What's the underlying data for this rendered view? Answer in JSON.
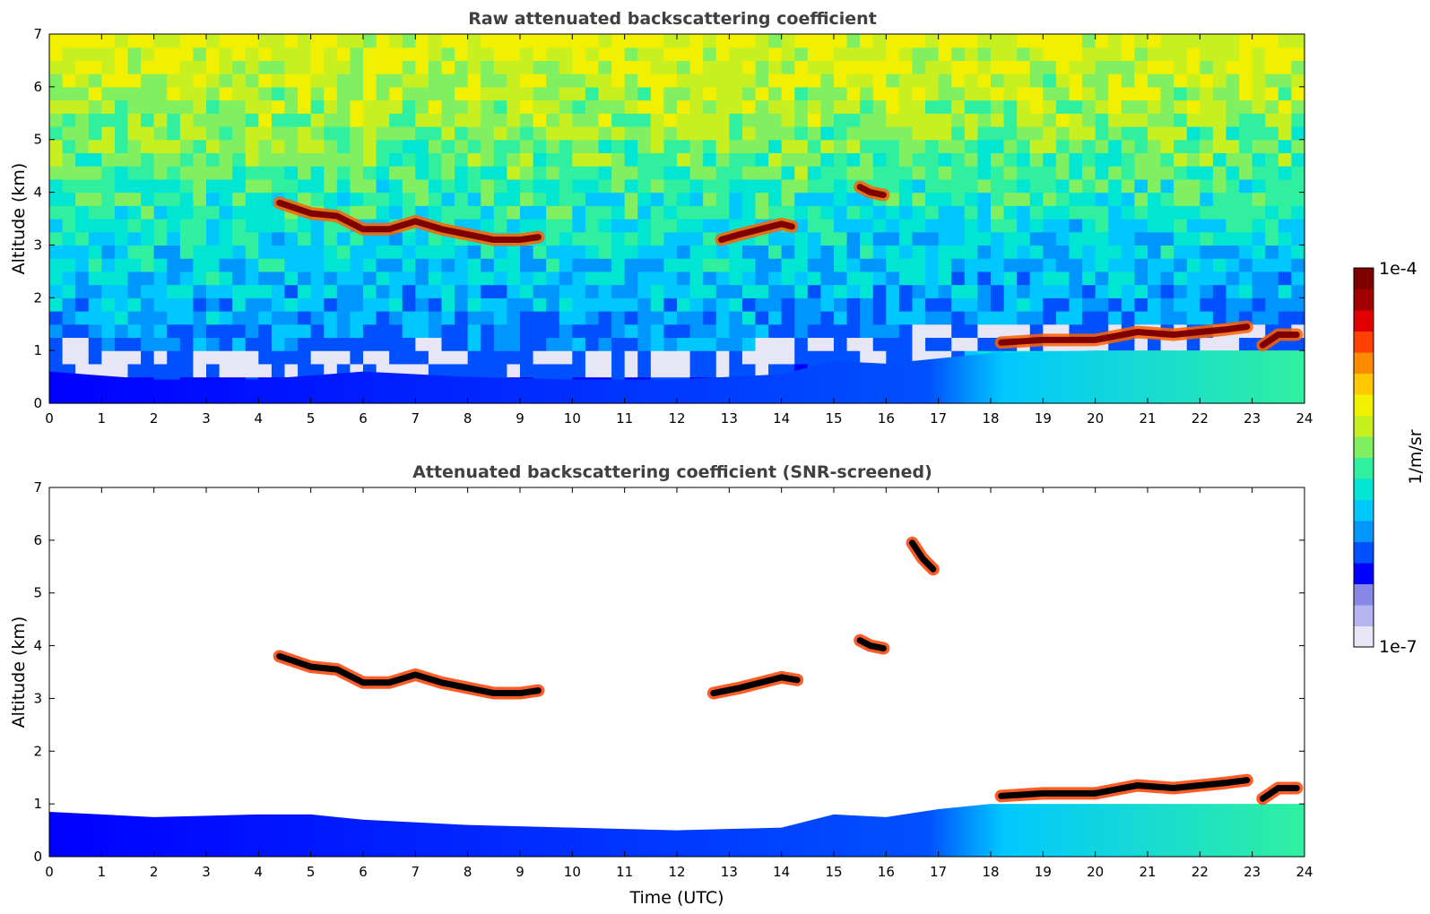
{
  "chart_data": [
    {
      "type": "heatmap",
      "title": "Raw attenuated backscattering coefficient",
      "xlabel": "",
      "ylabel": "Altitude (km)",
      "xlim": [
        0,
        24
      ],
      "ylim": [
        0,
        7
      ],
      "xticks": [
        0,
        1,
        2,
        3,
        4,
        5,
        6,
        7,
        8,
        9,
        10,
        11,
        12,
        13,
        14,
        15,
        16,
        17,
        18,
        19,
        20,
        21,
        22,
        23,
        24
      ],
      "yticks": [
        0,
        1,
        2,
        3,
        4,
        5,
        6,
        7
      ],
      "boundary_layer_top_km": {
        "x": [
          0,
          2,
          4,
          6,
          8,
          10,
          12,
          14,
          15,
          16,
          17,
          18,
          20,
          22,
          24
        ],
        "y": [
          0.6,
          0.45,
          0.45,
          0.6,
          0.5,
          0.45,
          0.45,
          0.55,
          0.8,
          0.75,
          0.85,
          0.95,
          1.0,
          1.0,
          1.0
        ]
      },
      "cloud_layers": [
        {
          "x": [
            4.4,
            5.0,
            5.5,
            6.0,
            6.5,
            7.0,
            7.5,
            8.0,
            8.5,
            9.0,
            9.35
          ],
          "y": [
            3.8,
            3.6,
            3.55,
            3.3,
            3.3,
            3.45,
            3.3,
            3.2,
            3.1,
            3.1,
            3.15
          ]
        },
        {
          "x": [
            12.85,
            13.2,
            13.6,
            14.0,
            14.2
          ],
          "y": [
            3.1,
            3.2,
            3.3,
            3.4,
            3.35
          ]
        },
        {
          "x": [
            15.5,
            15.7,
            15.95
          ],
          "y": [
            4.1,
            4.0,
            3.95
          ]
        },
        {
          "x": [
            18.2,
            19.0,
            20.0,
            20.8,
            21.5,
            22.0,
            22.5,
            22.9
          ],
          "y": [
            1.15,
            1.2,
            1.2,
            1.35,
            1.3,
            1.35,
            1.4,
            1.45
          ]
        },
        {
          "x": [
            23.2,
            23.5,
            23.85
          ],
          "y": [
            1.1,
            1.3,
            1.3
          ]
        }
      ]
    },
    {
      "type": "heatmap",
      "title": "Attenuated backscattering coefficient (SNR-screened)",
      "xlabel": "Time (UTC)",
      "ylabel": "Altitude (km)",
      "xlim": [
        0,
        24
      ],
      "ylim": [
        0,
        7
      ],
      "xticks": [
        0,
        1,
        2,
        3,
        4,
        5,
        6,
        7,
        8,
        9,
        10,
        11,
        12,
        13,
        14,
        15,
        16,
        17,
        18,
        19,
        20,
        21,
        22,
        23,
        24
      ],
      "yticks": [
        0,
        1,
        2,
        3,
        4,
        5,
        6,
        7
      ],
      "boundary_layer_top_km": {
        "x": [
          0,
          1,
          2,
          4,
          5,
          6,
          8,
          10,
          12,
          14,
          15,
          16,
          17,
          18,
          20,
          22,
          24
        ],
        "y": [
          0.85,
          0.8,
          0.75,
          0.8,
          0.8,
          0.7,
          0.6,
          0.55,
          0.5,
          0.55,
          0.8,
          0.75,
          0.9,
          1.0,
          1.0,
          1.0,
          1.0
        ]
      },
      "cloud_layers": [
        {
          "x": [
            4.4,
            5.0,
            5.5,
            6.0,
            6.5,
            7.0,
            7.5,
            8.0,
            8.5,
            9.0,
            9.35
          ],
          "y": [
            3.8,
            3.6,
            3.55,
            3.3,
            3.3,
            3.45,
            3.3,
            3.2,
            3.1,
            3.1,
            3.15
          ]
        },
        {
          "x": [
            12.7,
            13.2,
            13.6,
            14.0,
            14.3
          ],
          "y": [
            3.1,
            3.2,
            3.3,
            3.4,
            3.35
          ]
        },
        {
          "x": [
            15.5,
            15.7,
            15.95
          ],
          "y": [
            4.1,
            4.0,
            3.95
          ]
        },
        {
          "x": [
            16.5,
            16.7,
            16.9
          ],
          "y": [
            5.95,
            5.65,
            5.45
          ]
        },
        {
          "x": [
            18.2,
            19.0,
            20.0,
            20.8,
            21.5,
            22.0,
            22.5,
            22.9
          ],
          "y": [
            1.15,
            1.2,
            1.2,
            1.35,
            1.3,
            1.35,
            1.4,
            1.45
          ]
        },
        {
          "x": [
            23.2,
            23.5,
            23.85
          ],
          "y": [
            1.1,
            1.3,
            1.3
          ]
        }
      ]
    }
  ],
  "colorbar": {
    "label": "1/m/sr",
    "max_label": "1e-4",
    "min_label": "1e-7",
    "colors": [
      "#e6e6f7",
      "#b4b4ee",
      "#8787e6",
      "#0000ff",
      "#0050ff",
      "#0096ff",
      "#00c8ff",
      "#00e6d2",
      "#30f0a0",
      "#80f060",
      "#c8f020",
      "#f0f000",
      "#ffc800",
      "#ff8c00",
      "#ff4000",
      "#e00000",
      "#a00000",
      "#800000"
    ]
  }
}
